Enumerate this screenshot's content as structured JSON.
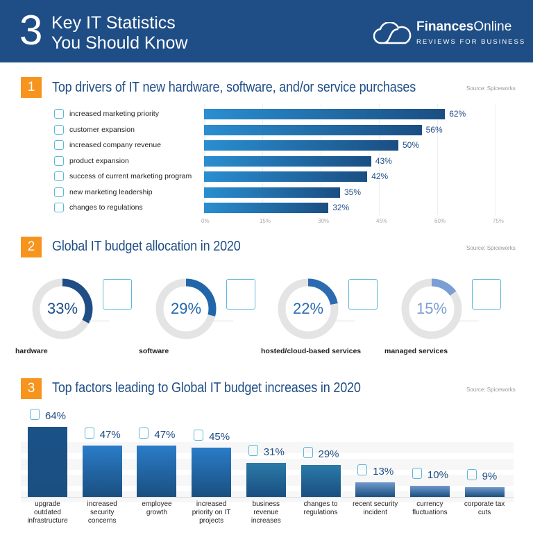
{
  "header": {
    "number": "3",
    "title_line1": "Key IT Statistics",
    "title_line2": "You Should Know",
    "logo_bold": "Finances",
    "logo_light": "Online",
    "logo_tagline": "REVIEWS FOR BUSINESS"
  },
  "colors": {
    "header": "#1f4e86",
    "badge": "#f7941d",
    "icon": "#5bb8d6"
  },
  "chart_data": [
    {
      "type": "bar",
      "orientation": "horizontal",
      "badge": "1",
      "title": "Top drivers of IT new hardware, software, and/or service purchases",
      "source": "Source: Spiceworks",
      "categories": [
        "increased marketing priority",
        "customer expansion",
        "increased company revenue",
        "product expansion",
        "success of current marketing program",
        "new marketing leadership",
        "changes to regulations"
      ],
      "icons": [
        "megaphone-icon",
        "customers-icon",
        "money-bag-icon",
        "product-icon",
        "trophy-icon",
        "leader-icon",
        "document-icon"
      ],
      "values": [
        62,
        56,
        50,
        43,
        42,
        35,
        32
      ],
      "labels": [
        "62%",
        "56%",
        "50%",
        "43%",
        "42%",
        "35%",
        "32%"
      ],
      "xticks": [
        "0%",
        "15%",
        "30%",
        "45%",
        "60%",
        "75%"
      ],
      "xlim": [
        0,
        75
      ],
      "grid": true
    },
    {
      "type": "pie",
      "variant": "donut",
      "badge": "2",
      "title": "Global IT budget allocation in 2020",
      "source": "Source: Spiceworks",
      "categories": [
        "hardware",
        "software",
        "hosted/cloud-based services",
        "managed services"
      ],
      "values": [
        33,
        29,
        22,
        15
      ],
      "labels": [
        "33%",
        "29%",
        "22%",
        "15%"
      ],
      "icons": [
        "motherboard-icon",
        "monitor-cube-icon",
        "cloud-server-icon",
        "control-panel-icon"
      ],
      "colors": [
        "#1f4e86",
        "#2266aa",
        "#2b6cb0",
        "#7b9fd4"
      ]
    },
    {
      "type": "bar",
      "orientation": "vertical",
      "badge": "3",
      "title": "Top factors leading to Global IT budget increases in 2020",
      "source": "Source: Spiceworks",
      "categories": [
        "upgrade outdated infrastructure",
        "increased security concerns",
        "employee growth",
        "increased priority on IT projects",
        "business revenue increases",
        "changes to regulations",
        "recent security incident",
        "currency fluctuations",
        "corporate tax cuts"
      ],
      "values": [
        64,
        47,
        47,
        45,
        31,
        29,
        13,
        10,
        9
      ],
      "labels": [
        "64%",
        "47%",
        "47%",
        "45%",
        "31%",
        "29%",
        "13%",
        "10%",
        "9%"
      ],
      "icons": [
        "cloud-network-icon",
        "lock-icon",
        "team-icon",
        "workflow-icon",
        "money-bag-icon",
        "document-shield-icon",
        "warning-icon",
        "money-hand-icon",
        "tax-bag-icon"
      ],
      "colors": [
        "#1a5288",
        "#2a7cc8",
        "#2a7cc8",
        "#2a7cc8",
        "#2a7aa8",
        "#2a7aa8",
        "#6f99cc",
        "#6f99cc",
        "#6f99cc"
      ],
      "grid": true
    }
  ]
}
